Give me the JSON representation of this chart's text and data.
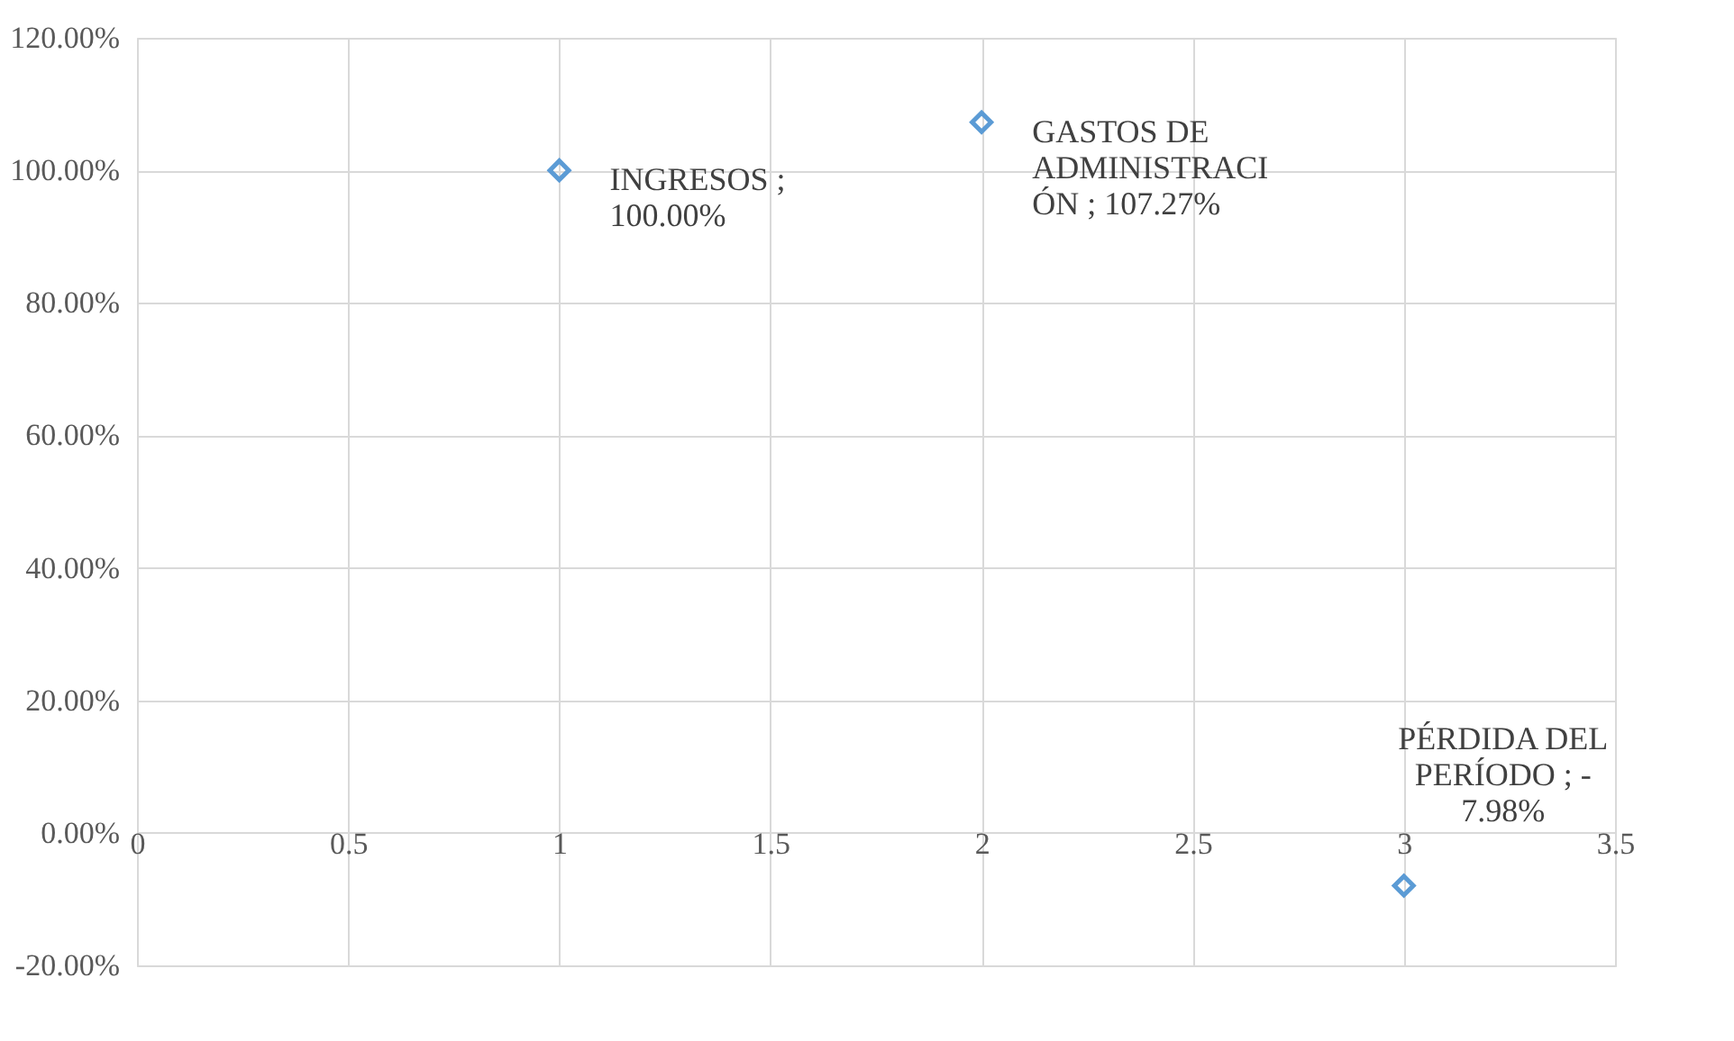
{
  "chart_data": {
    "type": "scatter",
    "x": [
      1,
      2,
      3
    ],
    "series": [
      {
        "color": "#5b9bd5",
        "values": [
          100,
          107.27,
          -7.98
        ]
      }
    ],
    "value_labels": [
      "INGRESOS ;\n100.00%",
      "GASTOS DE\nADMINISTRACI\nÓN ; 107.27%",
      "PÉRDIDA DEL\nPERÍODO ; -\n7.98%"
    ],
    "marker": "diamond",
    "grid": true,
    "xlim": [
      0,
      3.5
    ],
    "xticks": [
      0,
      0.5,
      1,
      1.5,
      2,
      2.5,
      3,
      3.5
    ],
    "ylim": [
      -20,
      120
    ],
    "yticks": [
      {
        "value": -20,
        "label": "-20.00%"
      },
      {
        "value": 0,
        "label": "0.00%"
      },
      {
        "value": 20,
        "label": "20.00%"
      },
      {
        "value": 40,
        "label": "40.00%"
      },
      {
        "value": 60,
        "label": "60.00%"
      },
      {
        "value": 80,
        "label": "80.00%"
      },
      {
        "value": 100,
        "label": "100.00%"
      },
      {
        "value": 120,
        "label": "120.00%"
      }
    ]
  }
}
